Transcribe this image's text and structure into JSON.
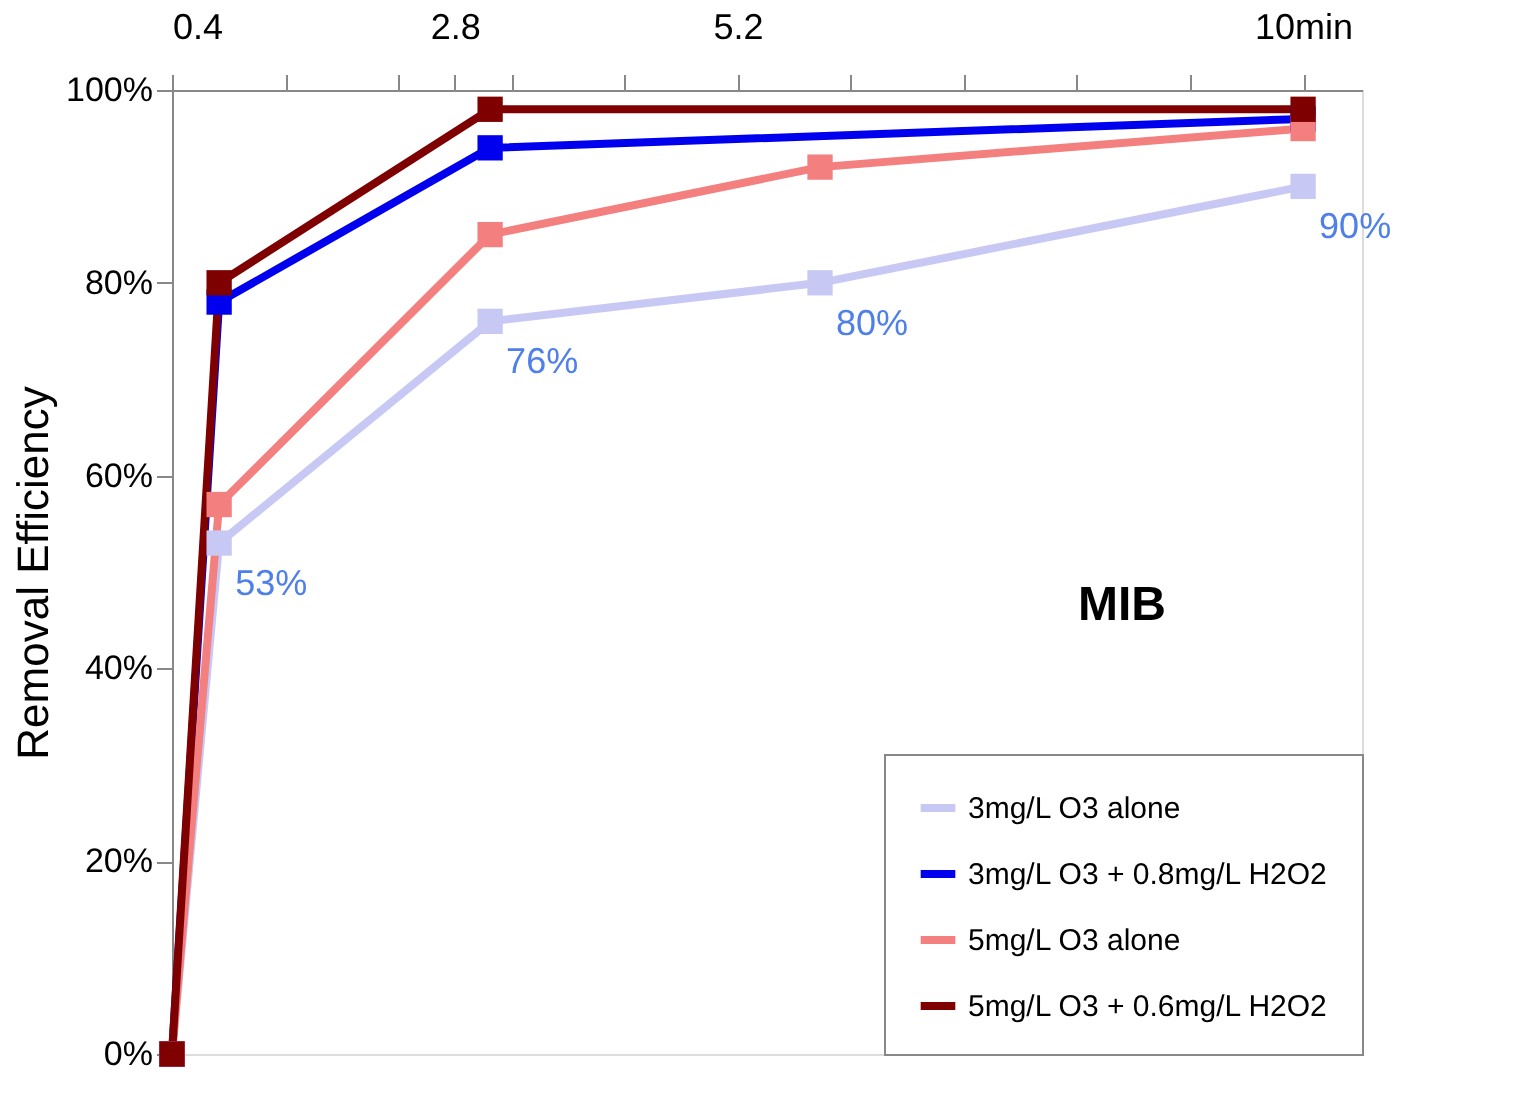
{
  "chart_data": {
    "type": "line",
    "ylabel": "Removal Efficiency",
    "x": [
      0.4,
      0.8,
      3.1,
      5.9,
      10
    ],
    "xlim": [
      0.4,
      10.5
    ],
    "xticks": [
      0.4,
      {
        "value": 1.36,
        "label": null
      },
      {
        "value": 2.32,
        "label": null
      },
      2.8,
      {
        "value": 3.28,
        "label": null
      },
      {
        "value": 4.24,
        "label": null
      },
      5.2,
      {
        "value": 6.16,
        "label": null
      },
      {
        "value": 7.12,
        "label": null
      },
      {
        "value": 8.08,
        "label": null
      },
      {
        "value": 9.04,
        "label": null
      },
      {
        "value": 10,
        "label": "10min"
      }
    ],
    "ylim": [
      0,
      100
    ],
    "yticks": [
      {
        "value": 0,
        "label": "0%"
      },
      {
        "value": 20,
        "label": "20%"
      },
      {
        "value": 40,
        "label": "40%"
      },
      {
        "value": 60,
        "label": "60%"
      },
      {
        "value": 80,
        "label": "80%"
      },
      {
        "value": 100,
        "label": "100%"
      }
    ],
    "grid": false,
    "legend": "bottom right",
    "marker": "square",
    "line_style": "solid",
    "annotations": [
      "MIB"
    ],
    "series": [
      {
        "name": "3mg/L O3 alone",
        "color": "#c8c8f4",
        "values": [
          0,
          53,
          76,
          80,
          90
        ],
        "value_labels": [
          null,
          "53%",
          "76%",
          "80%",
          "90%"
        ]
      },
      {
        "name": "3mg/L O3 + 0.8mg/L H2O2",
        "color": "#0000ee",
        "values": [
          0,
          78,
          94,
          null,
          97
        ]
      },
      {
        "name": "5mg/L O3 alone",
        "color": "#f47f7f",
        "values": [
          0,
          57,
          85,
          92,
          96
        ]
      },
      {
        "name": "5mg/L O3 + 0.6mg/L H2O2",
        "color": "#7f0000",
        "values": [
          0,
          80,
          98,
          null,
          98
        ]
      }
    ]
  }
}
